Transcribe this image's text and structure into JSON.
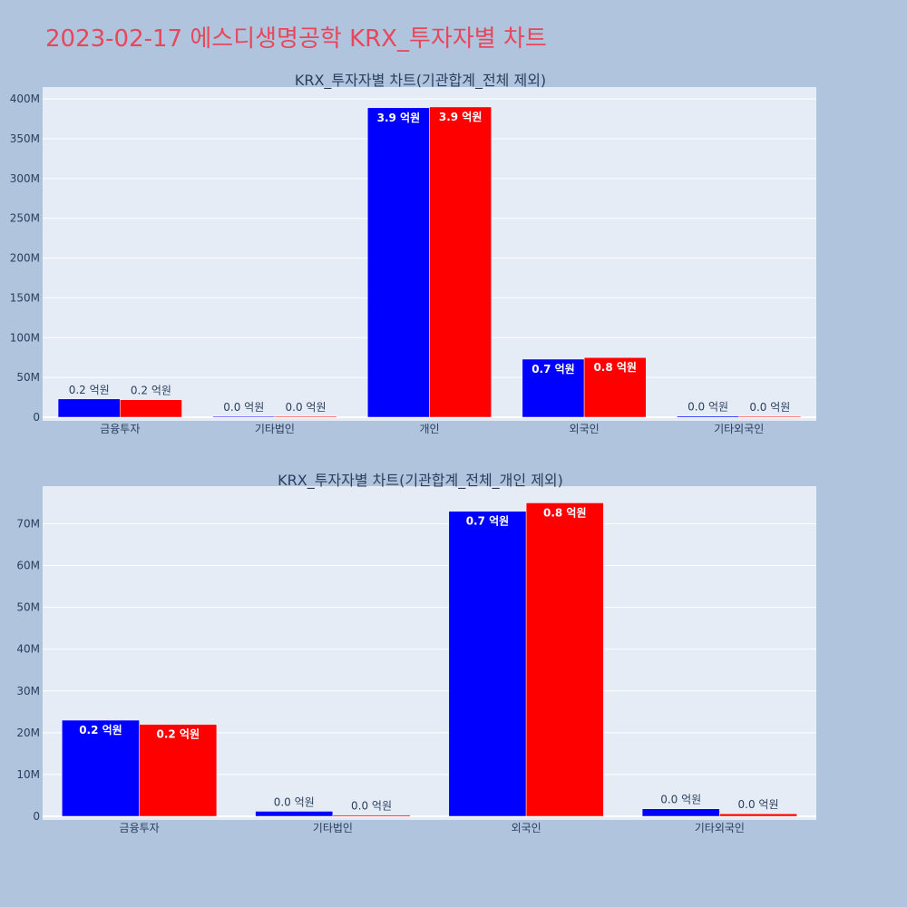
{
  "page": {
    "title": "2023-02-17 에스디생명공학 KRX_투자자별 차트"
  },
  "colors": {
    "background": "#b0c4de",
    "plot_bg": "#e5ecf6",
    "series_blue": "#0000ff",
    "series_red": "#ff0000",
    "title_color": "#e8475b",
    "axis_text": "#2a3f5f"
  },
  "chart_data": [
    {
      "type": "bar",
      "title": "KRX_투자자별 차트(기관합계_전체 제외)",
      "categories": [
        "금융투자",
        "기타법인",
        "개인",
        "외국인",
        "기타외국인"
      ],
      "series": [
        {
          "color": "#0000ff",
          "values": [
            23000000,
            1000000,
            389000000,
            73000000,
            1500000
          ],
          "labels": [
            "0.2 억원",
            "0.0 억원",
            "3.9 억원",
            "0.7 억원",
            "0.0 억원"
          ]
        },
        {
          "color": "#ff0000",
          "values": [
            22000000,
            500000,
            390000000,
            75000000,
            800000
          ],
          "labels": [
            "0.2 억원",
            "0.0 억원",
            "3.9 억원",
            "0.8 억원",
            "0.0 억원"
          ]
        }
      ],
      "ylim": [
        0,
        415000000
      ],
      "yticks": [
        0,
        50000000,
        100000000,
        150000000,
        200000000,
        250000000,
        300000000,
        350000000,
        400000000
      ],
      "ytick_labels": [
        "0",
        "50M",
        "100M",
        "150M",
        "200M",
        "250M",
        "300M",
        "350M",
        "400M"
      ],
      "grid": true
    },
    {
      "type": "bar",
      "title": "KRX_투자자별 차트(기관합계_전체_개인 제외)",
      "categories": [
        "금융투자",
        "기타법인",
        "외국인",
        "기타외국인"
      ],
      "series": [
        {
          "color": "#0000ff",
          "values": [
            23000000,
            1200000,
            73000000,
            1800000
          ],
          "labels": [
            "0.2 억원",
            "0.0 억원",
            "0.7 억원",
            "0.0 억원"
          ]
        },
        {
          "color": "#ff0000",
          "values": [
            22000000,
            300000,
            75000000,
            600000
          ],
          "labels": [
            "0.2 억원",
            "0.0 억원",
            "0.8 억원",
            "0.0 억원"
          ]
        }
      ],
      "ylim": [
        0,
        79000000
      ],
      "yticks": [
        0,
        10000000,
        20000000,
        30000000,
        40000000,
        50000000,
        60000000,
        70000000
      ],
      "ytick_labels": [
        "0",
        "10M",
        "20M",
        "30M",
        "40M",
        "50M",
        "60M",
        "70M"
      ],
      "grid": true
    }
  ]
}
